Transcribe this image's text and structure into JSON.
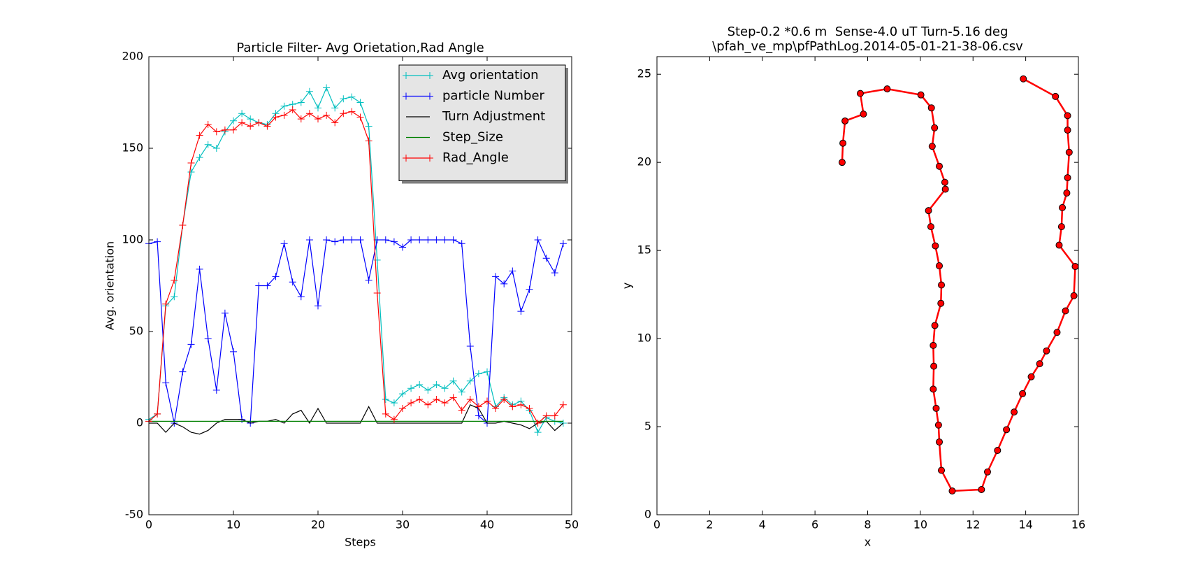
{
  "chart_data": [
    {
      "type": "line",
      "title": "Particle Filter- Avg Orietation,Rad Angle",
      "xlabel": "Steps",
      "ylabel": "Avg. orientation",
      "x": [
        0,
        1,
        2,
        3,
        4,
        5,
        6,
        7,
        8,
        9,
        10,
        11,
        12,
        13,
        14,
        15,
        16,
        17,
        18,
        19,
        20,
        21,
        22,
        23,
        24,
        25,
        26,
        27,
        28,
        29,
        30,
        31,
        32,
        33,
        34,
        35,
        36,
        37,
        38,
        39,
        40,
        41,
        42,
        43,
        44,
        45,
        46,
        47,
        48,
        49
      ],
      "series": [
        {
          "name": "Avg orientation",
          "color": "#00bfbf",
          "marker": "+",
          "values": [
            2,
            5,
            64,
            69,
            108,
            137,
            145,
            152,
            150,
            159,
            165,
            169,
            166,
            164,
            163,
            169,
            173,
            174,
            175,
            181,
            172,
            183,
            172,
            177,
            178,
            175,
            162,
            89,
            13,
            11,
            16,
            19,
            21,
            18,
            21,
            19,
            23,
            17,
            23,
            27,
            28,
            9,
            14,
            10,
            12,
            7,
            -5,
            3,
            1,
            0
          ]
        },
        {
          "name": "particle Number",
          "color": "#0000ff",
          "marker": "+",
          "values": [
            98,
            99,
            22,
            0,
            28,
            43,
            84,
            46,
            18,
            60,
            39,
            2,
            0,
            75,
            75,
            80,
            98,
            77,
            69,
            100,
            64,
            100,
            99,
            100,
            100,
            100,
            78,
            100,
            100,
            99,
            96,
            100,
            100,
            100,
            100,
            100,
            100,
            98,
            42,
            4,
            0,
            80,
            76,
            83,
            61,
            73,
            100,
            90,
            82,
            98
          ]
        },
        {
          "name": "Turn Adjustment",
          "color": "#000000",
          "values": [
            0,
            0,
            -5,
            0,
            -2,
            -5,
            -6,
            -4,
            0,
            2,
            2,
            2,
            0,
            1,
            1,
            2,
            0,
            5,
            7,
            0,
            8,
            0,
            0,
            0,
            0,
            0,
            9,
            0,
            0,
            0,
            0,
            0,
            0,
            0,
            0,
            0,
            0,
            0,
            10,
            8,
            0,
            0,
            1,
            0,
            -1,
            -3,
            0,
            1,
            -4,
            0
          ]
        },
        {
          "name": "Step_Size",
          "color": "#008000",
          "values": [
            1,
            1,
            1,
            1,
            1,
            1,
            1,
            1,
            1,
            1,
            1,
            1,
            1,
            1,
            1,
            1,
            1,
            1,
            1,
            1,
            1,
            1,
            1,
            1,
            1,
            1,
            1,
            1,
            1,
            1,
            1,
            1,
            1,
            1,
            1,
            1,
            1,
            1,
            1,
            1,
            1,
            1,
            1,
            1,
            1,
            1,
            1,
            1,
            1,
            1
          ]
        },
        {
          "name": "Rad_Angle",
          "color": "#ff0000",
          "marker": "+",
          "values": [
            1,
            5,
            65,
            78,
            108,
            142,
            157,
            163,
            159,
            160,
            160,
            164,
            162,
            164,
            162,
            167,
            168,
            171,
            166,
            169,
            166,
            168,
            164,
            169,
            170,
            167,
            154,
            71,
            5,
            2,
            8,
            11,
            13,
            10,
            13,
            11,
            14,
            7,
            13,
            9,
            12,
            8,
            13,
            9,
            10,
            8,
            0,
            4,
            4,
            10
          ]
        }
      ],
      "xlim": [
        0,
        50
      ],
      "xticks": [
        0,
        10,
        20,
        30,
        40,
        50
      ],
      "ylim": [
        -50,
        200
      ],
      "yticks": [
        -50,
        0,
        50,
        100,
        150,
        200
      ],
      "legend": "upper right",
      "legend_shadow": true,
      "legend_facecolor": "#e5e5e5"
    },
    {
      "type": "line",
      "title": [
        "Step-0.2 *0.6 m  Sense-4.0 uT Turn-5.16 deg",
        "\\pfah_ve_mp\\pfPathLog.2014-05-01-21-38-06.csv"
      ],
      "xlabel": "x",
      "ylabel": "y",
      "x": [
        7.03,
        7.06,
        7.14,
        7.84,
        7.72,
        8.74,
        10.02,
        10.42,
        10.54,
        10.45,
        10.72,
        10.93,
        10.95,
        10.31,
        10.4,
        10.57,
        10.72,
        10.8,
        10.78,
        10.55,
        10.49,
        10.51,
        10.49,
        10.6,
        10.69,
        10.72,
        10.8,
        11.21,
        12.32,
        12.55,
        12.93,
        13.27,
        13.56,
        13.88,
        14.21,
        14.53,
        14.79,
        15.19,
        15.51,
        15.83,
        15.88,
        15.27,
        15.36,
        15.39,
        15.56,
        15.59,
        15.65,
        15.59,
        15.59,
        15.13,
        13.91
      ],
      "series": [
        {
          "color": "#ff0000",
          "marker": "o",
          "values": [
            20.0,
            21.09,
            22.35,
            22.74,
            23.91,
            24.17,
            23.83,
            23.09,
            21.96,
            20.91,
            19.78,
            18.87,
            18.48,
            17.26,
            16.35,
            15.26,
            14.13,
            13.04,
            12.0,
            10.74,
            9.61,
            8.43,
            7.13,
            6.04,
            5.09,
            4.13,
            2.52,
            1.35,
            1.43,
            2.43,
            3.65,
            4.83,
            5.83,
            6.87,
            7.83,
            8.57,
            9.3,
            10.35,
            11.57,
            12.43,
            14.09,
            15.3,
            16.35,
            17.43,
            18.26,
            19.13,
            20.57,
            21.83,
            22.65,
            23.74,
            24.74
          ]
        }
      ],
      "xlim": [
        0,
        16
      ],
      "xticks": [
        0,
        2,
        4,
        6,
        8,
        10,
        12,
        14,
        16
      ],
      "ylim": [
        0,
        26
      ],
      "yticks": [
        0,
        5,
        10,
        15,
        20,
        25
      ]
    }
  ]
}
